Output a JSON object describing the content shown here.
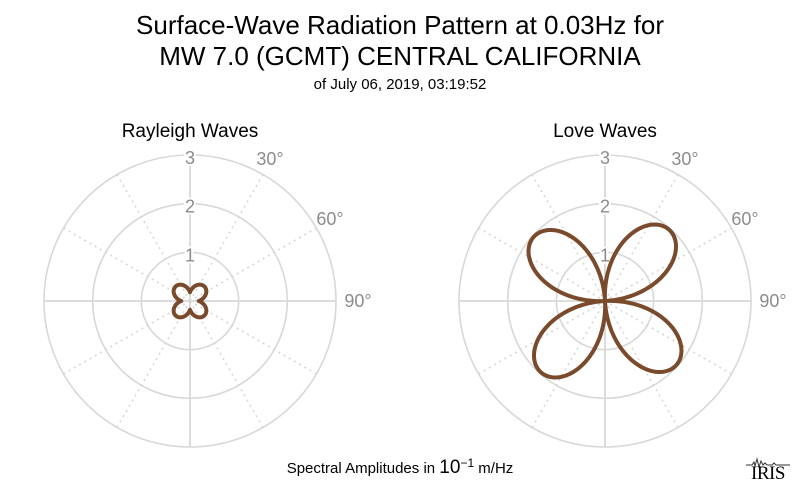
{
  "title_line1": "Surface-Wave Radiation Pattern at 0.03Hz for",
  "title_line2": "MW 7.0 (GCMT) CENTRAL CALIFORNIA",
  "subtitle": "of July 06, 2019, 03:19:52",
  "footer": {
    "prefix": "Spectral Amplitudes in",
    "base": "10",
    "exponent": "−1",
    "unit": "m/Hz"
  },
  "logo": {
    "text": "IRIS"
  },
  "colors": {
    "pattern": "#7a4a2c",
    "grid": "#d8d8d8",
    "label": "#8c8c8c"
  },
  "chart_data": [
    {
      "type": "polar-line",
      "title": "Rayleigh Waves",
      "radial_ticks": [
        "1",
        "2",
        "3"
      ],
      "rlim": [
        0,
        3
      ],
      "angle_ticks": [
        "30°",
        "60°",
        "90°"
      ],
      "angle_zero": "top",
      "direction": "clockwise",
      "pattern": {
        "form": "four-lobe",
        "lobe_axes_deg": [
          45,
          135,
          225,
          315
        ],
        "max_amplitude": 0.42,
        "min_amplitude": 0.18
      }
    },
    {
      "type": "polar-line",
      "title": "Love Waves",
      "radial_ticks": [
        "1",
        "2",
        "3"
      ],
      "rlim": [
        0,
        3
      ],
      "angle_ticks": [
        "30°",
        "60°",
        "90°"
      ],
      "angle_zero": "top",
      "direction": "clockwise",
      "pattern": {
        "form": "four-lobe",
        "lobe_axes_deg": [
          42,
          132,
          222,
          312
        ],
        "max_amplitude": 1.97,
        "min_amplitude": 0.0
      }
    }
  ]
}
